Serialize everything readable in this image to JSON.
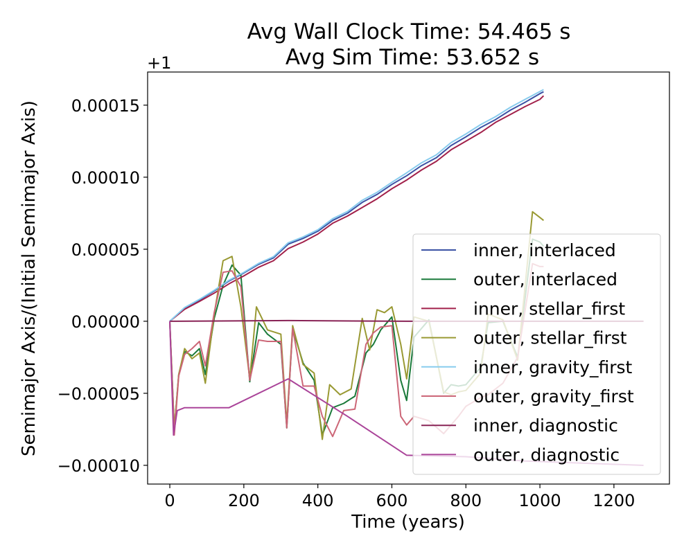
{
  "chart_data": {
    "type": "line",
    "title_lines": [
      "Avg Wall Clock Time: 54.465 s",
      "Avg Sim Time: 53.652 s"
    ],
    "xlabel": "Time (years)",
    "ylabel": "Semimajor Axis/(Initial Semimajor Axis)",
    "offset_label": "+1",
    "xlim": [
      -60,
      1350
    ],
    "ylim": [
      -0.000113,
      0.000173
    ],
    "xticks": [
      0,
      200,
      400,
      600,
      800,
      1000,
      1200
    ],
    "xtick_labels": [
      "0",
      "200",
      "400",
      "600",
      "800",
      "1000",
      "1200"
    ],
    "yticks": [
      -0.0001,
      -5e-05,
      0,
      5e-05,
      0.0001,
      0.00015
    ],
    "ytick_labels": [
      "−0.00010",
      "−0.00005",
      "0.00000",
      "0.00005",
      "0.00010",
      "0.00015"
    ],
    "grid": false,
    "legend_position": "lower-right",
    "series": [
      {
        "name": "inner, interlaced",
        "color": "#3a52a4",
        "x": [
          0,
          40,
          80,
          120,
          160,
          200,
          240,
          280,
          320,
          360,
          400,
          440,
          480,
          520,
          560,
          600,
          640,
          680,
          720,
          760,
          800,
          840,
          880,
          920,
          960,
          1000,
          1010
        ],
        "y": [
          0,
          9.1e-06,
          1.47e-05,
          2.1e-05,
          2.8e-05,
          3.35e-05,
          3.95e-05,
          4.4e-05,
          5.35e-05,
          5.75e-05,
          6.25e-05,
          7e-05,
          7.5e-05,
          8.25e-05,
          8.8e-05,
          9.5e-05,
          0.000101,
          0.000108,
          0.0001135,
          0.000122,
          0.000128,
          0.0001345,
          0.00014,
          0.0001465,
          0.000152,
          0.000158,
          0.0001593
        ]
      },
      {
        "name": "outer, interlaced",
        "color": "#1a7a3a",
        "x": [
          0,
          12,
          24,
          40,
          60,
          80,
          96,
          120,
          144,
          168,
          192,
          216,
          240,
          264,
          300,
          316,
          332,
          360,
          390,
          412,
          440,
          470,
          500,
          530,
          550,
          570,
          600,
          624,
          640,
          660,
          700,
          740,
          760,
          780,
          800,
          840,
          860,
          900,
          940,
          980,
          1000,
          1010
        ],
        "y": [
          0,
          -7.5e-05,
          -3.7e-05,
          -2.1e-05,
          -2.4e-05,
          -1.9e-05,
          -3.7e-05,
          2e-06,
          2.5e-05,
          3.9e-05,
          3.2e-05,
          -4.2e-05,
          -1e-06,
          -9e-06,
          -1.6e-05,
          -7.4e-05,
          -5e-06,
          -2.9e-05,
          -4.1e-05,
          -7.9e-05,
          -6e-05,
          -5.7e-05,
          -5.2e-05,
          -2.2e-05,
          -1.6e-05,
          -6e-06,
          3e-06,
          -4.1e-05,
          -5.5e-05,
          -1.1e-05,
          1e-06,
          -5e-05,
          -4.4e-05,
          -4.5e-05,
          -4.4e-05,
          -3.2e-05,
          -1e-06,
          0.0,
          -2.5e-05,
          5.7e-05,
          5.5e-05,
          5.2e-05
        ]
      },
      {
        "name": "inner, stellar_first",
        "color": "#a1204a",
        "x": [
          0,
          40,
          80,
          120,
          160,
          200,
          240,
          280,
          320,
          360,
          400,
          440,
          480,
          520,
          560,
          600,
          640,
          680,
          720,
          760,
          800,
          840,
          880,
          920,
          960,
          1000,
          1010
        ],
        "y": [
          0,
          8.3e-06,
          1.38e-05,
          1.95e-05,
          2.6e-05,
          3.15e-05,
          3.75e-05,
          4.2e-05,
          5.05e-05,
          5.5e-05,
          6.05e-05,
          6.8e-05,
          7.3e-05,
          7.9e-05,
          8.5e-05,
          9.2e-05,
          9.8e-05,
          0.000105,
          0.000111,
          0.000119,
          0.000125,
          0.000131,
          0.000138,
          0.0001435,
          0.000149,
          0.000154,
          0.0001565
        ]
      },
      {
        "name": "outer, stellar_first",
        "color": "#999933",
        "x": [
          0,
          12,
          24,
          40,
          60,
          80,
          96,
          120,
          144,
          168,
          192,
          216,
          234,
          264,
          300,
          316,
          332,
          360,
          390,
          412,
          432,
          460,
          490,
          520,
          540,
          560,
          580,
          600,
          624,
          640,
          660,
          700,
          740,
          760,
          780,
          800,
          840,
          860,
          900,
          940,
          980,
          1000,
          1010
        ],
        "y": [
          0,
          -7.5e-05,
          -3.7e-05,
          -1.9e-05,
          -2.6e-05,
          -2.2e-05,
          -4.3e-05,
          5e-06,
          4.2e-05,
          4.5e-05,
          1e-05,
          -4e-05,
          1e-05,
          -6e-06,
          -9e-06,
          -7.1e-05,
          -3e-06,
          -3e-05,
          -3.6e-05,
          -8.2e-05,
          -4.4e-05,
          -5.1e-05,
          -4.7e-05,
          2e-06,
          -2e-05,
          8e-06,
          6e-06,
          1e-05,
          -1.6e-05,
          -4e-05,
          3e-06,
          0.0,
          -4.9e-05,
          -5.1e-05,
          -4.9e-05,
          -4.8e-05,
          -3.6e-05,
          5e-06,
          1e-06,
          -2.7e-05,
          7.6e-05,
          7.2e-05,
          7e-05
        ]
      },
      {
        "name": "inner, gravity_first",
        "color": "#88ccee",
        "x": [
          0,
          40,
          80,
          120,
          160,
          200,
          240,
          280,
          320,
          360,
          400,
          440,
          480,
          520,
          560,
          600,
          640,
          680,
          720,
          760,
          800,
          840,
          880,
          920,
          960,
          1000,
          1010
        ],
        "y": [
          0,
          9.5e-06,
          1.52e-05,
          2.15e-05,
          2.85e-05,
          3.4e-05,
          4.02e-05,
          4.48e-05,
          5.45e-05,
          5.85e-05,
          6.35e-05,
          7.12e-05,
          7.62e-05,
          8.4e-05,
          8.95e-05,
          9.65e-05,
          0.000103,
          0.00011,
          0.0001155,
          0.000124,
          0.00013,
          0.0001365,
          0.000142,
          0.0001485,
          0.000154,
          0.0001595,
          0.0001608
        ]
      },
      {
        "name": "outer, gravity_first",
        "color": "#cc6677",
        "x": [
          0,
          12,
          24,
          40,
          60,
          80,
          96,
          120,
          144,
          168,
          192,
          216,
          240,
          264,
          300,
          316,
          332,
          360,
          390,
          412,
          440,
          470,
          500,
          530,
          550,
          570,
          600,
          624,
          640,
          660,
          700,
          740,
          760,
          780,
          800,
          840,
          860,
          900,
          940,
          980,
          1000,
          1010
        ],
        "y": [
          0,
          -7.9e-05,
          -3.8e-05,
          -2.3e-05,
          -1.9e-05,
          -1.4e-05,
          -3.1e-05,
          6e-06,
          3.4e-05,
          3.5e-05,
          2.4e-05,
          -4.1e-05,
          -1.3e-05,
          -1.4e-05,
          -1.4e-05,
          -7.4e-05,
          -5e-06,
          -4.5e-05,
          -4.5e-05,
          -6.6e-05,
          -8e-05,
          -6.2e-05,
          -6.1e-05,
          -1.6e-05,
          -8e-06,
          -4e-06,
          -3e-06,
          -6.6e-05,
          -7.2e-05,
          -6.6e-05,
          -6.9e-05,
          -7.8e-05,
          -7.2e-05,
          -6.6e-05,
          -5.9e-05,
          -5.3e-05,
          -5.1e-05,
          -4.3e-05,
          -2.5e-05,
          4e-05,
          3.8e-05,
          3.8e-05
        ]
      },
      {
        "name": "inner, diagnostic",
        "color": "#882255",
        "x": [
          0,
          320,
          640,
          960,
          1280
        ],
        "y": [
          0,
          5e-07,
          0,
          0,
          0
        ]
      },
      {
        "name": "outer, diagnostic",
        "color": "#aa4499",
        "x": [
          0,
          10,
          20,
          40,
          80,
          160,
          320,
          480,
          640,
          800,
          960,
          1280
        ],
        "y": [
          0,
          -7.9e-05,
          -6.2e-05,
          -6e-05,
          -6e-05,
          -6e-05,
          -4e-05,
          -6.6e-05,
          -9.3e-05,
          -9.4e-05,
          -9.7e-05,
          -0.0001
        ]
      }
    ]
  }
}
